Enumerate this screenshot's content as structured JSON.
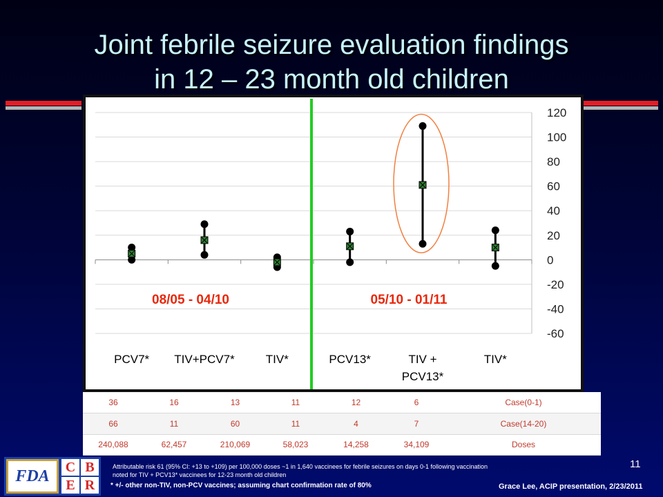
{
  "slide": {
    "title_line1": "Joint febrile seizure evaluation findings",
    "title_line2": "in 12 – 23 month old children",
    "page_number": "11",
    "credit": "Grace Lee, ACIP presentation, 2/23/2011",
    "footnote_1": "Attributable risk 61 (95% CI: +13 to +109) per 100,000 doses ~1 in 1,640 vaccinees for febrile seizures on days 0-1 following vaccination noted for TIV + PCV13* vaccinees for 12-23 month old children",
    "footnote_2": "* +/- other non-TIV,  non-PCV vaccines; assuming chart confirmation rate of 80%",
    "logo": {
      "fda": "FDA",
      "cber": [
        "C",
        "B",
        "E",
        "R"
      ]
    }
  },
  "chart_data": {
    "type": "scatter",
    "subtype": "point-estimate-with-confidence-interval",
    "categories": [
      "PCV7*",
      "TIV+PCV7*",
      "TIV*",
      "PCV13*",
      "TIV + PCV13*",
      "TIV*"
    ],
    "points": [
      {
        "category": "PCV7*",
        "estimate": 5,
        "lower": 0,
        "upper": 10
      },
      {
        "category": "TIV+PCV7*",
        "estimate": 16,
        "lower": 4,
        "upper": 29
      },
      {
        "category": "TIV*",
        "estimate": -2,
        "lower": -6,
        "upper": 2
      },
      {
        "category": "PCV13*",
        "estimate": 11,
        "lower": -2,
        "upper": 23
      },
      {
        "category": "TIV + PCV13*",
        "estimate": 61,
        "lower": 13,
        "upper": 109
      },
      {
        "category": "TIV*",
        "estimate": 10,
        "lower": -5,
        "upper": 24
      }
    ],
    "periods": [
      "08/05 - 04/10",
      "05/10 - 01/11"
    ],
    "period_divider_after_index": 2,
    "highlighted_index": 4,
    "ylim": [
      -60,
      120
    ],
    "yticks": [
      120,
      100,
      80,
      60,
      40,
      20,
      0,
      -20,
      -40,
      -60
    ],
    "y_axis_side": "right",
    "grid": true,
    "colors": {
      "divider": "#22cc22",
      "highlight": "#f08040",
      "marker_fill": "#2e7d32"
    }
  },
  "table": {
    "rows": [
      {
        "values": [
          "36",
          "16",
          "13",
          "11",
          "12",
          "6"
        ],
        "label": "Case(0-1)"
      },
      {
        "values": [
          "66",
          "11",
          "60",
          "11",
          "4",
          "7"
        ],
        "label": "Case(14-20)"
      },
      {
        "values": [
          "240,088",
          "62,457",
          "210,069",
          "58,023",
          "14,258",
          "34,109"
        ],
        "label": "Doses"
      }
    ]
  }
}
